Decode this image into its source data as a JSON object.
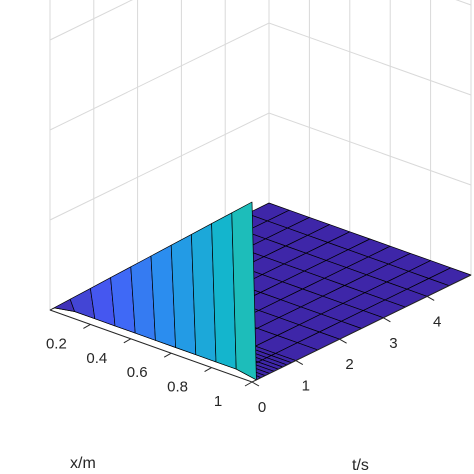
{
  "chart_data": {
    "type": "surface",
    "xlabel": "x/m",
    "ylabel": "t/s",
    "zlabel": "",
    "colormap": "parula",
    "grid": true,
    "xlim": [
      0,
      1
    ],
    "tlim": [
      0,
      5
    ],
    "x_ticks": [
      "0.2",
      "0.4",
      "0.6",
      "0.8",
      "1"
    ],
    "t_ticks": [
      "0",
      "1",
      "2",
      "3",
      "4"
    ],
    "x": [
      0,
      0.1,
      0.2,
      0.3,
      0.4,
      0.5,
      0.6,
      0.7,
      0.8,
      0.9,
      1.0
    ],
    "t": [
      0,
      0.1,
      0.2,
      0.3,
      0.4,
      0.5,
      0.6,
      0.7,
      0.8,
      0.9,
      1.0,
      1.5,
      2.0,
      2.5,
      3.0,
      3.5,
      4.0,
      4.5,
      5.0
    ],
    "z_rows": [
      [
        0.0,
        0.1,
        0.2,
        0.3,
        0.4,
        0.5,
        0.6,
        0.7,
        0.8,
        0.9,
        1.0
      ],
      [
        0.0,
        0.02,
        0.02,
        0.02,
        0.02,
        0.02,
        0.02,
        0.02,
        0.02,
        0.02,
        0.0
      ],
      [
        0.0,
        0.01,
        0.01,
        0.01,
        0.01,
        0.01,
        0.01,
        0.01,
        0.01,
        0.01,
        0.0
      ],
      [
        0.0,
        0.0,
        0.0,
        0.0,
        0.0,
        0.0,
        0.0,
        0.0,
        0.0,
        0.0,
        0.0
      ],
      [
        0.0,
        0.0,
        0.0,
        0.0,
        0.0,
        0.0,
        0.0,
        0.0,
        0.0,
        0.0,
        0.0
      ],
      [
        0.0,
        0.0,
        0.0,
        0.0,
        0.0,
        0.0,
        0.0,
        0.0,
        0.0,
        0.0,
        0.0
      ],
      [
        0.0,
        0.0,
        0.0,
        0.0,
        0.0,
        0.0,
        0.0,
        0.0,
        0.0,
        0.0,
        0.0
      ],
      [
        0.0,
        0.0,
        0.0,
        0.0,
        0.0,
        0.0,
        0.0,
        0.0,
        0.0,
        0.0,
        0.0
      ],
      [
        0.0,
        0.0,
        0.0,
        0.0,
        0.0,
        0.0,
        0.0,
        0.0,
        0.0,
        0.0,
        0.0
      ],
      [
        0.0,
        0.0,
        0.0,
        0.0,
        0.0,
        0.0,
        0.0,
        0.0,
        0.0,
        0.0,
        0.0
      ],
      [
        0.0,
        0.0,
        0.0,
        0.0,
        0.0,
        0.0,
        0.0,
        0.0,
        0.0,
        0.0,
        0.0
      ],
      [
        0.0,
        0.0,
        0.0,
        0.0,
        0.0,
        0.0,
        0.0,
        0.0,
        0.0,
        0.0,
        0.0
      ],
      [
        0.0,
        0.0,
        0.0,
        0.0,
        0.0,
        0.0,
        0.0,
        0.0,
        0.0,
        0.0,
        0.0
      ],
      [
        0.0,
        0.0,
        0.0,
        0.0,
        0.0,
        0.0,
        0.0,
        0.0,
        0.0,
        0.0,
        0.0
      ],
      [
        0.0,
        0.0,
        0.0,
        0.0,
        0.0,
        0.0,
        0.0,
        0.0,
        0.0,
        0.0,
        0.0
      ],
      [
        0.0,
        0.0,
        0.0,
        0.0,
        0.0,
        0.0,
        0.0,
        0.0,
        0.0,
        0.0,
        0.0
      ],
      [
        0.0,
        0.0,
        0.0,
        0.0,
        0.0,
        0.0,
        0.0,
        0.0,
        0.0,
        0.0,
        0.0
      ],
      [
        0.0,
        0.0,
        0.0,
        0.0,
        0.0,
        0.0,
        0.0,
        0.0,
        0.0,
        0.0,
        0.0
      ],
      [
        0.0,
        0.0,
        0.0,
        0.0,
        0.0,
        0.0,
        0.0,
        0.0,
        0.0,
        0.0,
        0.0
      ]
    ],
    "colors": {
      "grid": "#d9d9d9",
      "axis": "#262626",
      "mesh_edge": "#000000",
      "low": "#3e26a8",
      "high": "#f9fb15"
    }
  }
}
